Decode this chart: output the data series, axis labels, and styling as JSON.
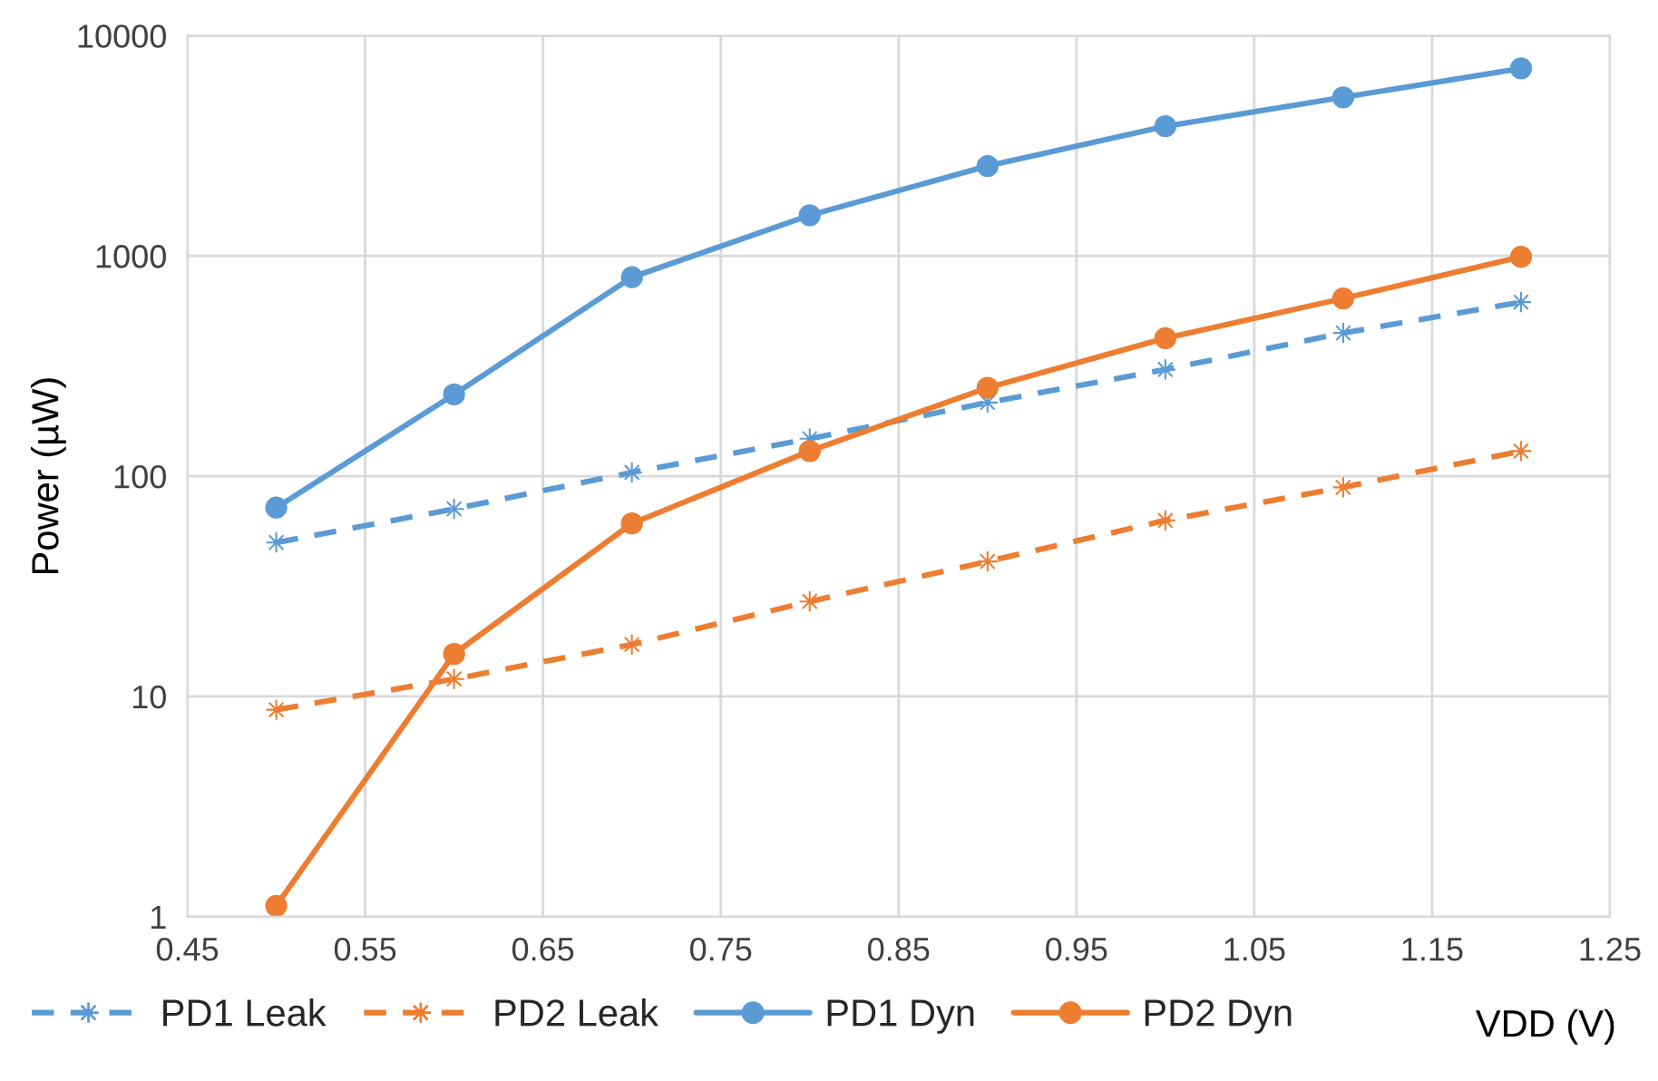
{
  "chart_data": {
    "type": "line",
    "xlabel": "VDD (V)",
    "ylabel": "Power (µW)",
    "log": "y",
    "grid": true,
    "legend": "bottom",
    "x": [
      0.5,
      0.6,
      0.7,
      0.8,
      0.9,
      1.0,
      1.1,
      1.2
    ],
    "xlim": [
      0.45,
      1.25
    ],
    "xticks": [
      {
        "value": 0.45,
        "label": "0.45"
      },
      {
        "value": 0.55,
        "label": "0.55"
      },
      {
        "value": 0.65,
        "label": "0.65"
      },
      {
        "value": 0.75,
        "label": "0.75"
      },
      {
        "value": 0.85,
        "label": "0.85"
      },
      {
        "value": 0.95,
        "label": "0.95"
      },
      {
        "value": 1.05,
        "label": "1.05"
      },
      {
        "value": 1.15,
        "label": "1.15"
      },
      {
        "value": 1.25,
        "label": "1.25"
      }
    ],
    "ylim": [
      1,
      10000
    ],
    "yticks": [
      1,
      10,
      100,
      1000,
      10000
    ],
    "series": [
      {
        "name": "PD1 Leak",
        "color": "#5b9bd5",
        "marker": "star",
        "line_style": "dashed",
        "values": [
          50,
          71,
          104,
          148,
          216,
          305,
          447,
          617
        ]
      },
      {
        "name": "PD2 Leak",
        "color": "#ed7d31",
        "marker": "star",
        "line_style": "dashed",
        "values": [
          8.7,
          12,
          17.2,
          27,
          41,
          63,
          89,
          130
        ]
      },
      {
        "name": "PD1 Dyn",
        "color": "#5b9bd5",
        "marker": "circle",
        "line_style": "solid",
        "values": [
          72,
          235,
          800,
          1530,
          2560,
          3880,
          5250,
          7100
        ]
      },
      {
        "name": "PD2 Dyn",
        "color": "#ed7d31",
        "marker": "circle",
        "line_style": "solid",
        "values": [
          1.12,
          15.6,
          61,
          130,
          252,
          423,
          641,
          990
        ]
      }
    ]
  }
}
